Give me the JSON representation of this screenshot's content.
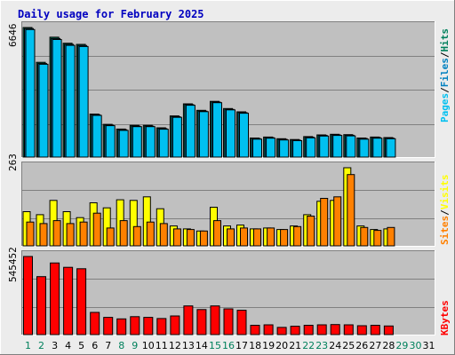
{
  "title": "Daily usage for February 2025",
  "colors": {
    "background": "#ECECEC",
    "plot_background": "#C0C0C0",
    "pages": "#00C0F0",
    "files": "#0080C0",
    "hits": "#00805C",
    "sites": "#FF8000",
    "visits": "#FFFF00",
    "kbytes": "#FF0000",
    "weekday": "#000000",
    "weekend": "#00805C"
  },
  "labels": {
    "pages": "Pages",
    "files": "Files",
    "hits": "Hits",
    "sites": "Sites",
    "visits": "Visits",
    "kbytes": "KBytes",
    "sep": "/"
  },
  "chart_data": [
    {
      "type": "bar",
      "name": "hits-files-pages",
      "max_label": "6646",
      "ylim": [
        0,
        6646
      ],
      "grid": true,
      "categories": [
        "1",
        "2",
        "3",
        "4",
        "5",
        "6",
        "7",
        "8",
        "9",
        "10",
        "11",
        "12",
        "13",
        "14",
        "15",
        "16",
        "17",
        "18",
        "19",
        "20",
        "21",
        "22",
        "23",
        "24",
        "25",
        "26",
        "27",
        "28",
        "29",
        "30",
        "31"
      ],
      "series": [
        {
          "name": "Hits",
          "values": [
            6646,
            4860,
            6148,
            5840,
            5780,
            2210,
            1680,
            1440,
            1630,
            1630,
            1500,
            2110,
            2730,
            2400,
            2860,
            2490,
            2320,
            980,
            1030,
            940,
            900,
            1050,
            1140,
            1170,
            1150,
            980,
            1030,
            1000,
            null,
            null,
            null
          ]
        },
        {
          "name": "Files",
          "values": [
            6590,
            4800,
            6080,
            5780,
            5720,
            2170,
            1640,
            1400,
            1590,
            1590,
            1460,
            2070,
            2690,
            2360,
            2820,
            2450,
            2280,
            950,
            1000,
            910,
            870,
            1020,
            1110,
            1140,
            1120,
            950,
            1000,
            970,
            null,
            null,
            null
          ]
        },
        {
          "name": "Pages",
          "values": [
            6540,
            4760,
            6030,
            5730,
            5670,
            2140,
            1610,
            1370,
            1560,
            1560,
            1430,
            2040,
            2660,
            2330,
            2790,
            2420,
            2250,
            920,
            970,
            880,
            840,
            990,
            1080,
            1110,
            1090,
            920,
            970,
            940,
            null,
            null,
            null
          ]
        }
      ]
    },
    {
      "type": "bar",
      "name": "visits-sites",
      "max_label": "263",
      "ylim": [
        0,
        263
      ],
      "grid": true,
      "categories": [
        "1",
        "2",
        "3",
        "4",
        "5",
        "6",
        "7",
        "8",
        "9",
        "10",
        "11",
        "12",
        "13",
        "14",
        "15",
        "16",
        "17",
        "18",
        "19",
        "20",
        "21",
        "22",
        "23",
        "24",
        "25",
        "26",
        "27",
        "28",
        "29",
        "30",
        "31"
      ],
      "series": [
        {
          "name": "Visits",
          "values": [
            115,
            105,
            153,
            115,
            95,
            145,
            128,
            155,
            153,
            165,
            125,
            67,
            57,
            50,
            130,
            67,
            70,
            57,
            60,
            55,
            67,
            105,
            150,
            153,
            263,
            67,
            55,
            57,
            null,
            null,
            null
          ]
        },
        {
          "name": "Sites",
          "values": [
            80,
            75,
            85,
            75,
            80,
            110,
            60,
            85,
            65,
            80,
            75,
            57,
            55,
            50,
            85,
            57,
            60,
            57,
            60,
            55,
            65,
            100,
            160,
            165,
            240,
            62,
            52,
            62,
            null,
            null,
            null
          ]
        }
      ]
    },
    {
      "type": "bar",
      "name": "kbytes",
      "max_label": "545452",
      "ylim": [
        0,
        545452
      ],
      "grid": true,
      "categories": [
        "1",
        "2",
        "3",
        "4",
        "5",
        "6",
        "7",
        "8",
        "9",
        "10",
        "11",
        "12",
        "13",
        "14",
        "15",
        "16",
        "17",
        "18",
        "19",
        "20",
        "21",
        "22",
        "23",
        "24",
        "25",
        "26",
        "27",
        "28",
        "29",
        "30",
        "31"
      ],
      "series": [
        {
          "name": "KBytes",
          "values": [
            545452,
            405000,
            500000,
            470000,
            460000,
            155000,
            120000,
            110000,
            125000,
            120000,
            112000,
            130000,
            200000,
            175000,
            200000,
            180000,
            170000,
            65000,
            68000,
            50000,
            58000,
            65000,
            68000,
            70000,
            68000,
            62000,
            65000,
            60000,
            null,
            null,
            null
          ]
        }
      ]
    }
  ],
  "x_ticks": [
    {
      "label": "1",
      "weekend": true
    },
    {
      "label": "2",
      "weekend": true
    },
    {
      "label": "3",
      "weekend": false
    },
    {
      "label": "4",
      "weekend": false
    },
    {
      "label": "5",
      "weekend": false
    },
    {
      "label": "6",
      "weekend": false
    },
    {
      "label": "7",
      "weekend": false
    },
    {
      "label": "8",
      "weekend": true
    },
    {
      "label": "9",
      "weekend": true
    },
    {
      "label": "10",
      "weekend": false
    },
    {
      "label": "11",
      "weekend": false
    },
    {
      "label": "12",
      "weekend": false
    },
    {
      "label": "13",
      "weekend": false
    },
    {
      "label": "14",
      "weekend": false
    },
    {
      "label": "15",
      "weekend": true
    },
    {
      "label": "16",
      "weekend": true
    },
    {
      "label": "17",
      "weekend": false
    },
    {
      "label": "18",
      "weekend": false
    },
    {
      "label": "19",
      "weekend": false
    },
    {
      "label": "20",
      "weekend": false
    },
    {
      "label": "21",
      "weekend": false
    },
    {
      "label": "22",
      "weekend": true
    },
    {
      "label": "23",
      "weekend": true
    },
    {
      "label": "24",
      "weekend": false
    },
    {
      "label": "25",
      "weekend": false
    },
    {
      "label": "26",
      "weekend": false
    },
    {
      "label": "27",
      "weekend": false
    },
    {
      "label": "28",
      "weekend": false
    },
    {
      "label": "29",
      "weekend": true
    },
    {
      "label": "30",
      "weekend": true
    },
    {
      "label": "31",
      "weekend": false
    }
  ]
}
